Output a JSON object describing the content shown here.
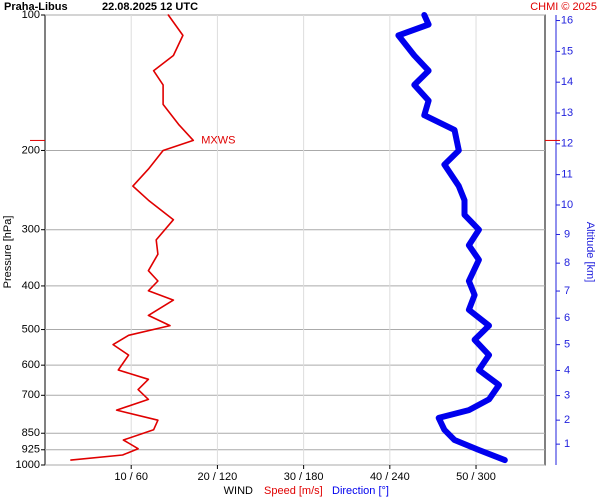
{
  "chart_data": {
    "type": "profile",
    "title": "Praha-Libus",
    "subtitle": "22.08.2025 12 UTC",
    "credit": "CHMI © 2025",
    "ylabel": "Pressure [hPa]",
    "y2label": "Altitude [km]",
    "xlabel": "WIND",
    "annotation": "MXWS",
    "ylim": [
      1000,
      100
    ],
    "ylog": true,
    "yticks": [
      100,
      200,
      300,
      400,
      500,
      600,
      700,
      850,
      925,
      1000
    ],
    "y2ticks": [
      1,
      2,
      3,
      4,
      5,
      6,
      7,
      8,
      9,
      10,
      11,
      12,
      13,
      14,
      15,
      16
    ],
    "y2color": "#2222dd",
    "xlim": [
      0,
      58
    ],
    "x2lim": [
      0,
      348
    ],
    "xticks": [
      {
        "value": 10,
        "label": "10 / 60"
      },
      {
        "value": 20,
        "label": "20 / 120"
      },
      {
        "value": 30,
        "label": "30 / 180"
      },
      {
        "value": 40,
        "label": "40 / 240"
      },
      {
        "value": 50,
        "label": "50 / 300"
      }
    ],
    "grid": true,
    "series": [
      {
        "name": "Speed [m/s]",
        "color": "#e00000",
        "axis": "x",
        "pressure": [
          975,
          950,
          920,
          880,
          835,
          795,
          755,
          715,
          680,
          645,
          615,
          570,
          540,
          515,
          490,
          465,
          430,
          410,
          390,
          370,
          340,
          316,
          285,
          258,
          240,
          220,
          200,
          190,
          175,
          158,
          143,
          133,
          123,
          111,
          100
        ],
        "values": [
          3,
          9,
          10.8,
          9.1,
          12.6,
          13.1,
          8.3,
          12,
          10.8,
          12,
          8.5,
          9.7,
          7.9,
          9.7,
          14.5,
          12,
          14.9,
          12,
          13.1,
          12,
          13.1,
          12.9,
          14.9,
          12,
          10.2,
          12,
          13.7,
          17.2,
          15.5,
          13.7,
          13.7,
          12.6,
          14.9,
          16,
          14.3
        ]
      },
      {
        "name": "Direction [°]",
        "color": "#0000ee",
        "axis": "x2",
        "pressure": [
          975,
          926,
          880,
          835,
          786,
          755,
          715,
          664,
          615,
          570,
          527,
          490,
          452,
          419,
          390,
          350,
          325,
          300,
          278,
          258,
          240,
          215,
          200,
          180,
          167,
          155,
          143,
          133,
          123,
          111,
          105,
          100
        ],
        "values": [
          320,
          302,
          285,
          278,
          274,
          295,
          309,
          316,
          302,
          309,
          299,
          309,
          295,
          299,
          295,
          302,
          295,
          302,
          292,
          292,
          288,
          278,
          288,
          285,
          264,
          267,
          257,
          267,
          257,
          246,
          267,
          264
        ]
      }
    ]
  }
}
